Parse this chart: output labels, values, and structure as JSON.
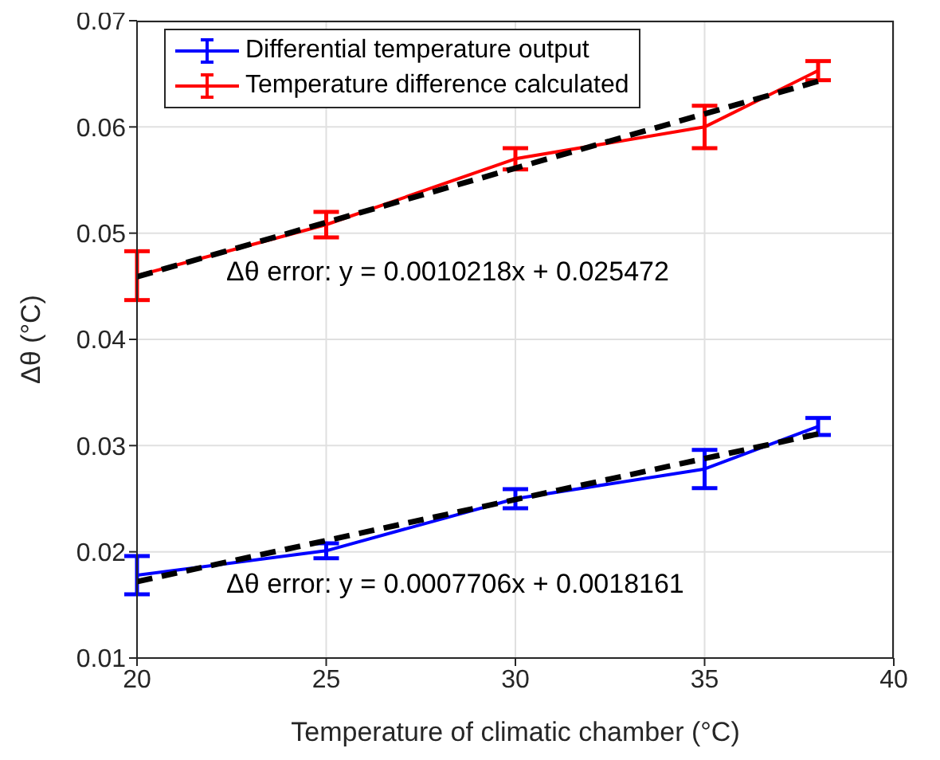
{
  "chart_data": {
    "type": "line",
    "xlabel": "Temperature of climatic chamber (°C)",
    "ylabel": "Δθ (°C)",
    "xlim": [
      20,
      40
    ],
    "xticks": [
      20,
      25,
      30,
      35,
      40
    ],
    "ylim": [
      0.01,
      0.07
    ],
    "yticks": [
      0.01,
      0.02,
      0.03,
      0.04,
      0.05,
      0.06,
      0.07
    ],
    "grid": true,
    "legend": "top left",
    "marker": "none",
    "annotations": [
      "Δθ error: y = 0.0010218x + 0.025472",
      "Δθ error: y = 0.0007706x + 0.0018161"
    ],
    "series": [
      {
        "name": "Differential temperature output",
        "color": "#0000ff",
        "line_style": "solid",
        "x": [
          20,
          25,
          30,
          35,
          38
        ],
        "values": [
          0.0178,
          0.0201,
          0.025,
          0.0278,
          0.0318
        ],
        "errors": [
          0.0018,
          0.0007,
          0.0009,
          0.0018,
          0.0008
        ]
      },
      {
        "name": "Temperature difference calculated",
        "color": "#ff0000",
        "line_style": "solid",
        "x": [
          20,
          25,
          30,
          35,
          38
        ],
        "values": [
          0.046,
          0.0508,
          0.057,
          0.06,
          0.0653
        ],
        "errors": [
          0.0023,
          0.0012,
          0.001,
          0.002,
          0.0009
        ]
      },
      {
        "color": "#000000",
        "line_style": "dashed",
        "x": [
          20,
          38
        ],
        "values": [
          0.0459,
          0.0643
        ]
      },
      {
        "color": "#000000",
        "line_style": "dashed",
        "x": [
          20,
          38
        ],
        "values": [
          0.0172,
          0.0311
        ]
      }
    ]
  }
}
